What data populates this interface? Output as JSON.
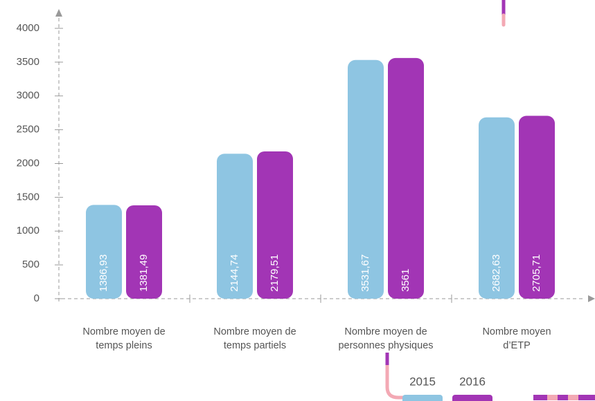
{
  "chart_data": {
    "type": "bar",
    "categories": [
      "Nombre moyen de\ntemps pleins",
      "Nombre moyen de\ntemps partiels",
      "Nombre moyen de\npersonnes physiques",
      "Nombre moyen\nd’ETP"
    ],
    "series": [
      {
        "name": "2015",
        "color": "#8ec5e2",
        "values": [
          1386.93,
          2144.74,
          3531.67,
          2682.63
        ],
        "value_labels": [
          "1386,93",
          "2144,74",
          "3531,67",
          "2682,63"
        ]
      },
      {
        "name": "2016",
        "color": "#a235b5",
        "values": [
          1381.49,
          2179.51,
          3561,
          2705.71
        ],
        "value_labels": [
          "1381,49",
          "2179,51",
          "3561",
          "2705,71"
        ]
      }
    ],
    "ylim": [
      0,
      4000
    ],
    "yticks": [
      0,
      500,
      1000,
      1500,
      2000,
      2500,
      3000,
      3500,
      4000
    ]
  }
}
